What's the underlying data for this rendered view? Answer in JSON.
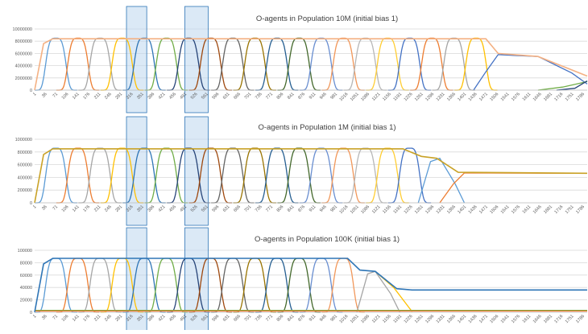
{
  "chart_data": [
    {
      "type": "line",
      "title": "O-agents in Population 10M (initial bias 1)",
      "xlabel": "",
      "ylabel": "",
      "ylim": [
        0,
        10000000
      ],
      "yticks": [
        "0",
        "2000000",
        "4000000",
        "6000000",
        "8000000",
        "10000000"
      ],
      "x_tick_labels": [
        "1",
        "36",
        "71",
        "106",
        "141",
        "176",
        "211",
        "246",
        "281",
        "316",
        "351",
        "386",
        "421",
        "456",
        "491",
        "526",
        "561",
        "596",
        "631",
        "666",
        "701",
        "736",
        "771",
        "806",
        "841",
        "876",
        "911",
        "946",
        "981",
        "1016",
        "1051",
        "1086",
        "1121",
        "1156",
        "1191",
        "1226",
        "1261",
        "1296",
        "1331",
        "1366",
        "1401",
        "1436",
        "1471",
        "1506",
        "1541",
        "1576",
        "1611",
        "1646",
        "1681",
        "1716",
        "1751",
        "1786"
      ],
      "x_range": [
        1,
        1800
      ],
      "grid": true,
      "legend": "none",
      "highlight_ranges": [
        [
          300,
          366
        ],
        [
          490,
          566
        ]
      ],
      "peaks": {
        "centers": [
          70,
          142,
          214,
          286,
          358,
          430,
          502,
          574,
          646,
          718,
          790,
          862,
          934,
          1006,
          1078,
          1150,
          1222,
          1294,
          1366,
          1438
        ],
        "peak_value": 8500000,
        "width": 32,
        "series_colors": [
          "#5b9bd5",
          "#ed7d31",
          "#a5a5a5",
          "#ffc000",
          "#2e75b6",
          "#70ad47",
          "#264478",
          "#9e480e",
          "#636363",
          "#997300",
          "#255e91",
          "#43682b",
          "#698ed0",
          "#f1975a",
          "#b7b7b7",
          "#ffcd33",
          "#4472c4",
          "#ed7d31",
          "#a5a5a5",
          "#ffc000"
        ]
      },
      "envelope": {
        "name": "",
        "color": "#f4b183",
        "points": [
          [
            1,
            0
          ],
          [
            30,
            7600000
          ],
          [
            60,
            8400000
          ],
          [
            1470,
            8400000
          ],
          [
            1510,
            6000000
          ],
          [
            1640,
            5500000
          ],
          [
            1800,
            2300000
          ]
        ]
      },
      "tail_lines": [
        {
          "color": "#4472c4",
          "points": [
            [
              1430,
              0
            ],
            [
              1470,
              3000000
            ],
            [
              1510,
              5800000
            ],
            [
              1640,
              5500000
            ],
            [
              1750,
              2800000
            ],
            [
              1800,
              1000000
            ]
          ]
        },
        {
          "color": "#70ad47",
          "points": [
            [
              1640,
              0
            ],
            [
              1720,
              500000
            ],
            [
              1800,
              1400000
            ]
          ]
        },
        {
          "color": "#264478",
          "points": [
            [
              1700,
              0
            ],
            [
              1760,
              300000
            ],
            [
              1800,
              1500000
            ]
          ]
        }
      ]
    },
    {
      "type": "line",
      "title": "O-agents in Population 1M (initial bias 1)",
      "xlabel": "",
      "ylabel": "",
      "ylim": [
        0,
        1000000
      ],
      "yticks": [
        "0",
        "200000",
        "400000",
        "600000",
        "800000",
        "1000000"
      ],
      "x_tick_labels": [
        "1",
        "36",
        "71",
        "106",
        "141",
        "176",
        "211",
        "246",
        "281",
        "316",
        "351",
        "386",
        "421",
        "456",
        "491",
        "526",
        "561",
        "596",
        "631",
        "666",
        "701",
        "736",
        "771",
        "806",
        "841",
        "876",
        "911",
        "946",
        "981",
        "1016",
        "1051",
        "1086",
        "1121",
        "1156",
        "1191",
        "1226",
        "1261",
        "1296",
        "1331",
        "1366",
        "1401",
        "1436",
        "1471",
        "1506",
        "1541",
        "1576",
        "1611",
        "1646",
        "1681",
        "1716",
        "1751",
        "1786"
      ],
      "x_range": [
        1,
        1800
      ],
      "grid": true,
      "legend": "none",
      "highlight_ranges": [
        [
          300,
          366
        ],
        [
          490,
          566
        ]
      ],
      "peaks": {
        "centers": [
          70,
          142,
          214,
          286,
          358,
          430,
          502,
          574,
          646,
          718,
          790,
          862,
          934,
          1006,
          1078,
          1150,
          1222
        ],
        "peak_value": 860000,
        "width": 32,
        "series_colors": [
          "#5b9bd5",
          "#ed7d31",
          "#a5a5a5",
          "#ffc000",
          "#2e75b6",
          "#70ad47",
          "#264478",
          "#9e480e",
          "#636363",
          "#997300",
          "#255e91",
          "#43682b",
          "#698ed0",
          "#f1975a",
          "#b7b7b7",
          "#ffcd33",
          "#4472c4"
        ]
      },
      "envelope": {
        "name": "",
        "color": "#c9a227",
        "points": [
          [
            1,
            0
          ],
          [
            30,
            760000
          ],
          [
            60,
            850000
          ],
          [
            1200,
            850000
          ],
          [
            1260,
            730000
          ],
          [
            1310,
            700000
          ],
          [
            1380,
            480000
          ],
          [
            1800,
            465000
          ]
        ]
      },
      "tail_lines": [
        {
          "color": "#5b9bd5",
          "points": [
            [
              1250,
              0
            ],
            [
              1290,
              650000
            ],
            [
              1320,
              700000
            ],
            [
              1370,
              300000
            ],
            [
              1400,
              0
            ]
          ]
        },
        {
          "color": "#ed7d31",
          "points": [
            [
              1320,
              0
            ],
            [
              1365,
              300000
            ],
            [
              1400,
              470000
            ],
            [
              1800,
              465000
            ]
          ]
        }
      ]
    },
    {
      "type": "line",
      "title": "O-agents in Population 100K (initial bias 1)",
      "xlabel": "",
      "ylabel": "",
      "ylim": [
        0,
        100000
      ],
      "yticks": [
        "0",
        "20000",
        "40000",
        "60000",
        "80000",
        "100000"
      ],
      "x_tick_labels": [
        "1",
        "36",
        "71",
        "106",
        "141",
        "176",
        "211",
        "246",
        "281",
        "316",
        "351",
        "386",
        "421",
        "456",
        "491",
        "526",
        "561",
        "596",
        "631",
        "666",
        "701",
        "736",
        "771",
        "806",
        "841",
        "876",
        "911",
        "946",
        "981",
        "1016",
        "1051",
        "1086",
        "1121",
        "1156",
        "1191",
        "1226",
        "1261",
        "1296",
        "1331",
        "1366",
        "1401",
        "1436",
        "1471",
        "1506",
        "1541",
        "1576",
        "1611",
        "1646",
        "1681",
        "1716",
        "1751",
        "1786"
      ],
      "x_range": [
        1,
        1800
      ],
      "grid": true,
      "legend": "none",
      "highlight_ranges": [
        [
          300,
          366
        ],
        [
          490,
          566
        ]
      ],
      "peaks": {
        "centers": [
          70,
          142,
          214,
          286,
          358,
          430,
          502,
          574,
          646,
          718,
          790,
          862,
          934,
          1006
        ],
        "peak_value": 87000,
        "width": 32,
        "series_colors": [
          "#5b9bd5",
          "#ed7d31",
          "#a5a5a5",
          "#ffc000",
          "#2e75b6",
          "#70ad47",
          "#264478",
          "#9e480e",
          "#636363",
          "#997300",
          "#255e91",
          "#43682b",
          "#698ed0",
          "#f1975a"
        ]
      },
      "envelope": {
        "name": "",
        "color": "#2e75b6",
        "points": [
          [
            1,
            0
          ],
          [
            30,
            78000
          ],
          [
            60,
            87000
          ],
          [
            1020,
            87000
          ],
          [
            1060,
            68000
          ],
          [
            1110,
            66000
          ],
          [
            1180,
            38000
          ],
          [
            1230,
            36000
          ],
          [
            1800,
            36000
          ]
        ]
      },
      "tail_lines": [
        {
          "color": "#a5a5a5",
          "points": [
            [
              1050,
              0
            ],
            [
              1085,
              62000
            ],
            [
              1110,
              66000
            ],
            [
              1160,
              30000
            ],
            [
              1190,
              0
            ]
          ]
        },
        {
          "color": "#ffc000",
          "points": [
            [
              1110,
              66000
            ],
            [
              1170,
              40000
            ],
            [
              1230,
              1000
            ]
          ]
        },
        {
          "color": "#70ad47",
          "points": [
            [
              1,
              3000
            ],
            [
              1800,
              3000
            ]
          ]
        },
        {
          "color": "#ed7d31",
          "points": [
            [
              1,
              2000
            ],
            [
              1800,
              2000
            ]
          ]
        }
      ]
    }
  ]
}
